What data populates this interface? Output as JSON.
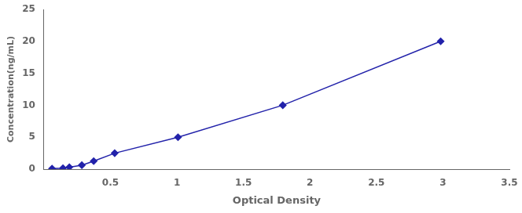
{
  "chart_data": {
    "type": "line",
    "x": [
      0.061,
      0.143,
      0.191,
      0.285,
      0.374,
      0.532,
      1.008,
      1.796,
      2.983
    ],
    "values": [
      0.078,
      0.156,
      0.313,
      0.625,
      1.25,
      2.5,
      5.0,
      10.0,
      20.0
    ],
    "color": "#2222aa",
    "marker": "diamond",
    "xlabel": "Optical Density",
    "ylabel": "Concentration(ng/mL)",
    "xlim": [
      0,
      3.5
    ],
    "ylim": [
      0,
      25
    ],
    "xticks": [
      0.5,
      1.0,
      1.5,
      2.0,
      2.5,
      3.0,
      3.5
    ],
    "yticks": [
      0,
      5,
      10,
      15,
      20,
      25
    ],
    "grid": false
  }
}
